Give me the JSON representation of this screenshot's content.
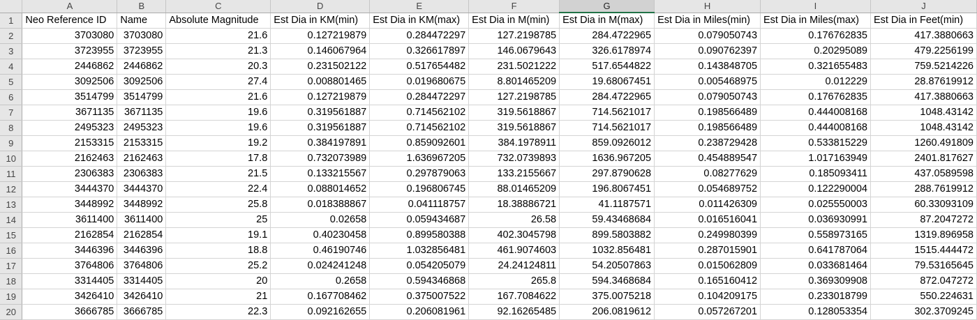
{
  "sheet": {
    "column_letters": [
      "A",
      "B",
      "C",
      "D",
      "E",
      "F",
      "G",
      "H",
      "I",
      "J"
    ],
    "selected_column_index": 6,
    "row_numbers": [
      1,
      2,
      3,
      4,
      5,
      6,
      7,
      8,
      9,
      10,
      11,
      12,
      13,
      14,
      15,
      16,
      17,
      18,
      19,
      20
    ],
    "header": [
      "Neo Reference ID",
      "Name",
      "Absolute Magnitude",
      "Est Dia in KM(min)",
      "Est Dia in KM(max)",
      "Est Dia in M(min)",
      "Est Dia in M(max)",
      "Est Dia in Miles(min)",
      "Est Dia in Miles(max)",
      "Est Dia in Feet(min)"
    ],
    "rows": [
      [
        "3703080",
        "3703080",
        "21.6",
        "0.127219879",
        "0.284472297",
        "127.2198785",
        "284.4722965",
        "0.079050743",
        "0.176762835",
        "417.3880663"
      ],
      [
        "3723955",
        "3723955",
        "21.3",
        "0.146067964",
        "0.326617897",
        "146.0679643",
        "326.6178974",
        "0.090762397",
        "0.20295089",
        "479.2256199"
      ],
      [
        "2446862",
        "2446862",
        "20.3",
        "0.231502122",
        "0.517654482",
        "231.5021222",
        "517.6544822",
        "0.143848705",
        "0.321655483",
        "759.5214226"
      ],
      [
        "3092506",
        "3092506",
        "27.4",
        "0.008801465",
        "0.019680675",
        "8.801465209",
        "19.68067451",
        "0.005468975",
        "0.012229",
        "28.87619912"
      ],
      [
        "3514799",
        "3514799",
        "21.6",
        "0.127219879",
        "0.284472297",
        "127.2198785",
        "284.4722965",
        "0.079050743",
        "0.176762835",
        "417.3880663"
      ],
      [
        "3671135",
        "3671135",
        "19.6",
        "0.319561887",
        "0.714562102",
        "319.5618867",
        "714.5621017",
        "0.198566489",
        "0.444008168",
        "1048.43142"
      ],
      [
        "2495323",
        "2495323",
        "19.6",
        "0.319561887",
        "0.714562102",
        "319.5618867",
        "714.5621017",
        "0.198566489",
        "0.444008168",
        "1048.43142"
      ],
      [
        "2153315",
        "2153315",
        "19.2",
        "0.384197891",
        "0.859092601",
        "384.1978911",
        "859.0926012",
        "0.238729428",
        "0.533815229",
        "1260.491809"
      ],
      [
        "2162463",
        "2162463",
        "17.8",
        "0.732073989",
        "1.636967205",
        "732.0739893",
        "1636.967205",
        "0.454889547",
        "1.017163949",
        "2401.817627"
      ],
      [
        "2306383",
        "2306383",
        "21.5",
        "0.133215567",
        "0.297879063",
        "133.2155667",
        "297.8790628",
        "0.08277629",
        "0.185093411",
        "437.0589598"
      ],
      [
        "3444370",
        "3444370",
        "22.4",
        "0.088014652",
        "0.196806745",
        "88.01465209",
        "196.8067451",
        "0.054689752",
        "0.122290004",
        "288.7619912"
      ],
      [
        "3448992",
        "3448992",
        "25.8",
        "0.018388867",
        "0.041118757",
        "18.38886721",
        "41.1187571",
        "0.011426309",
        "0.025550003",
        "60.33093109"
      ],
      [
        "3611400",
        "3611400",
        "25",
        "0.02658",
        "0.059434687",
        "26.58",
        "59.43468684",
        "0.016516041",
        "0.036930991",
        "87.2047272"
      ],
      [
        "2162854",
        "2162854",
        "19.1",
        "0.40230458",
        "0.899580388",
        "402.3045798",
        "899.5803882",
        "0.249980399",
        "0.558973165",
        "1319.896958"
      ],
      [
        "3446396",
        "3446396",
        "18.8",
        "0.46190746",
        "1.032856481",
        "461.9074603",
        "1032.856481",
        "0.287015901",
        "0.641787064",
        "1515.444472"
      ],
      [
        "3764806",
        "3764806",
        "25.2",
        "0.024241248",
        "0.054205079",
        "24.24124811",
        "54.20507863",
        "0.015062809",
        "0.033681464",
        "79.53165645"
      ],
      [
        "3314405",
        "3314405",
        "20",
        "0.2658",
        "0.594346868",
        "265.8",
        "594.3468684",
        "0.165160412",
        "0.369309908",
        "872.047272"
      ],
      [
        "3426410",
        "3426410",
        "21",
        "0.167708462",
        "0.375007522",
        "167.7084622",
        "375.0075218",
        "0.104209175",
        "0.233018799",
        "550.224631"
      ],
      [
        "3666785",
        "3666785",
        "22.3",
        "0.092162655",
        "0.206081961",
        "92.16265485",
        "206.0819612",
        "0.057267201",
        "0.128053354",
        "302.3709245"
      ]
    ]
  }
}
